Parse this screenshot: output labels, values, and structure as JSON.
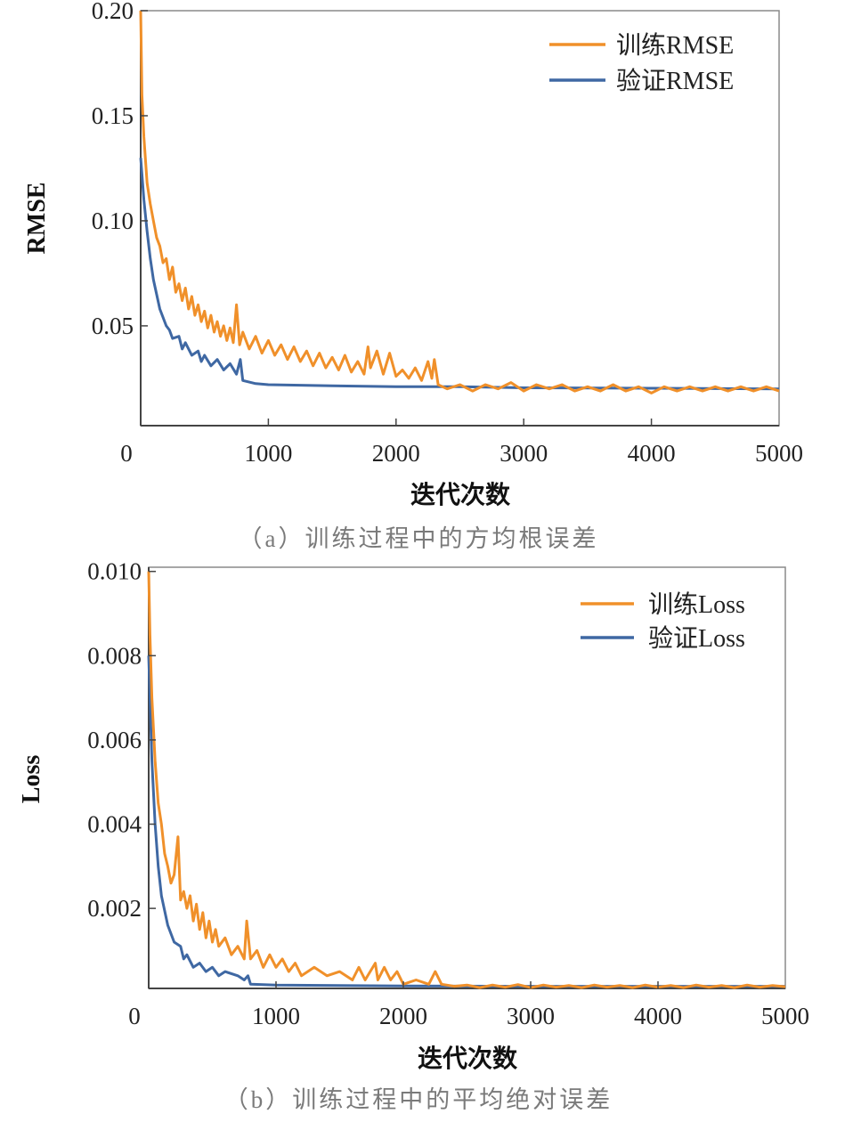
{
  "chart_data": [
    {
      "type": "line",
      "caption": "（a）训练过程中的方均根误差",
      "xlabel": "迭代次数",
      "ylabel": "RMSE",
      "xlim": [
        0,
        5000
      ],
      "ylim": [
        0.0025,
        0.2
      ],
      "xticks": [
        0,
        1000,
        2000,
        3000,
        4000,
        5000
      ],
      "xtick_labels": [
        "0",
        "1000",
        "2000",
        "3000",
        "4000",
        "5000"
      ],
      "yticks": [
        0.05,
        0.1,
        0.15,
        0.2
      ],
      "ytick_labels": [
        "0.05",
        "0.10",
        "0.15",
        "0.20"
      ],
      "grid": false,
      "legend_position": "top-right",
      "series": [
        {
          "name": "验证RMSE",
          "color": "#3F68A3",
          "x": [
            0,
            25,
            50,
            75,
            100,
            150,
            200,
            225,
            250,
            300,
            325,
            350,
            400,
            450,
            475,
            500,
            550,
            600,
            650,
            700,
            750,
            780,
            800,
            900,
            1000,
            1500,
            2000,
            2500,
            3000,
            4000,
            5000
          ],
          "y": [
            0.13,
            0.11,
            0.095,
            0.082,
            0.072,
            0.058,
            0.05,
            0.048,
            0.044,
            0.045,
            0.039,
            0.042,
            0.036,
            0.038,
            0.033,
            0.036,
            0.031,
            0.034,
            0.029,
            0.032,
            0.027,
            0.034,
            0.024,
            0.0225,
            0.022,
            0.0215,
            0.021,
            0.021,
            0.0205,
            0.0203,
            0.02
          ]
        },
        {
          "name": "训练RMSE",
          "color": "#F0902A",
          "x": [
            0,
            10,
            25,
            50,
            75,
            100,
            125,
            150,
            175,
            200,
            225,
            250,
            275,
            300,
            325,
            350,
            375,
            400,
            425,
            450,
            475,
            500,
            525,
            550,
            575,
            600,
            625,
            650,
            675,
            700,
            725,
            750,
            775,
            800,
            850,
            900,
            950,
            1000,
            1050,
            1100,
            1150,
            1200,
            1250,
            1300,
            1350,
            1400,
            1450,
            1500,
            1550,
            1600,
            1650,
            1700,
            1750,
            1780,
            1800,
            1850,
            1900,
            1950,
            2000,
            2050,
            2100,
            2150,
            2200,
            2250,
            2280,
            2300,
            2330,
            2400,
            2500,
            2600,
            2700,
            2800,
            2900,
            3000,
            3100,
            3200,
            3300,
            3400,
            3500,
            3600,
            3700,
            3800,
            3900,
            4000,
            4100,
            4200,
            4300,
            4400,
            4500,
            4600,
            4700,
            4800,
            4900,
            5000
          ],
          "y": [
            0.2,
            0.16,
            0.14,
            0.118,
            0.108,
            0.1,
            0.092,
            0.088,
            0.08,
            0.082,
            0.072,
            0.078,
            0.066,
            0.07,
            0.062,
            0.068,
            0.058,
            0.064,
            0.055,
            0.06,
            0.052,
            0.057,
            0.049,
            0.055,
            0.047,
            0.052,
            0.045,
            0.05,
            0.043,
            0.049,
            0.042,
            0.06,
            0.041,
            0.047,
            0.039,
            0.045,
            0.037,
            0.043,
            0.036,
            0.041,
            0.034,
            0.04,
            0.033,
            0.038,
            0.031,
            0.037,
            0.03,
            0.035,
            0.029,
            0.036,
            0.028,
            0.033,
            0.027,
            0.04,
            0.03,
            0.038,
            0.027,
            0.037,
            0.026,
            0.029,
            0.025,
            0.03,
            0.024,
            0.033,
            0.025,
            0.034,
            0.022,
            0.02,
            0.022,
            0.019,
            0.022,
            0.02,
            0.023,
            0.019,
            0.022,
            0.02,
            0.022,
            0.019,
            0.021,
            0.019,
            0.022,
            0.019,
            0.021,
            0.018,
            0.021,
            0.019,
            0.021,
            0.019,
            0.021,
            0.019,
            0.021,
            0.019,
            0.021,
            0.019
          ]
        }
      ],
      "legend": [
        "训练RMSE",
        "验证RMSE"
      ]
    },
    {
      "type": "line",
      "caption": "（b）训练过程中的平均绝对误差",
      "xlabel": "迭代次数",
      "ylabel": "Loss",
      "xlim": [
        0,
        5000
      ],
      "ylim": [
        0.0001,
        0.0101
      ],
      "xticks": [
        0,
        1000,
        2000,
        3000,
        4000,
        5000
      ],
      "xtick_labels": [
        "0",
        "1000",
        "2000",
        "3000",
        "4000",
        "5000"
      ],
      "yticks": [
        0.002,
        0.004,
        0.006,
        0.008,
        0.01
      ],
      "ytick_labels": [
        "0.002",
        "0.004",
        "0.006",
        "0.008",
        "0.010"
      ],
      "grid": false,
      "legend_position": "top-right",
      "series": [
        {
          "name": "验证Loss",
          "color": "#3F68A3",
          "x": [
            0,
            25,
            50,
            75,
            100,
            150,
            200,
            250,
            275,
            300,
            350,
            400,
            450,
            500,
            550,
            600,
            700,
            750,
            780,
            800,
            1000,
            2000,
            3000,
            4000,
            5000
          ],
          "y": [
            0.008,
            0.0055,
            0.004,
            0.003,
            0.0023,
            0.0016,
            0.0012,
            0.0011,
            0.0008,
            0.0009,
            0.0006,
            0.0007,
            0.0005,
            0.0006,
            0.0004,
            0.0005,
            0.0004,
            0.0003,
            0.0004,
            0.0002,
            0.00018,
            0.00016,
            0.00015,
            0.00015,
            0.00015
          ]
        },
        {
          "name": "训练Loss",
          "color": "#F0902A",
          "x": [
            0,
            10,
            25,
            50,
            75,
            100,
            125,
            150,
            175,
            200,
            230,
            250,
            275,
            300,
            325,
            350,
            375,
            400,
            425,
            450,
            475,
            500,
            525,
            550,
            600,
            650,
            700,
            750,
            770,
            800,
            850,
            900,
            950,
            1000,
            1050,
            1100,
            1150,
            1200,
            1300,
            1400,
            1500,
            1600,
            1650,
            1700,
            1780,
            1800,
            1850,
            1900,
            1950,
            2000,
            2100,
            2200,
            2250,
            2300,
            2400,
            2500,
            2600,
            2700,
            2800,
            2900,
            3000,
            3100,
            3200,
            3300,
            3400,
            3500,
            3600,
            3700,
            3800,
            3900,
            4000,
            4100,
            4200,
            4300,
            4400,
            4500,
            4600,
            4700,
            4800,
            4900,
            5000
          ],
          "y": [
            0.01,
            0.0085,
            0.007,
            0.0055,
            0.0045,
            0.004,
            0.0033,
            0.003,
            0.0026,
            0.0028,
            0.0037,
            0.0022,
            0.0024,
            0.002,
            0.0023,
            0.0017,
            0.0021,
            0.0015,
            0.0019,
            0.0013,
            0.0017,
            0.0012,
            0.0015,
            0.0011,
            0.0013,
            0.0009,
            0.0011,
            0.0008,
            0.0017,
            0.0008,
            0.001,
            0.0006,
            0.0009,
            0.0006,
            0.0008,
            0.0005,
            0.0007,
            0.0004,
            0.0006,
            0.0004,
            0.0005,
            0.0003,
            0.0006,
            0.0003,
            0.0007,
            0.0003,
            0.0006,
            0.0003,
            0.0005,
            0.0002,
            0.0003,
            0.0002,
            0.0005,
            0.0002,
            0.00015,
            0.00018,
            0.00012,
            0.00018,
            0.00013,
            0.00019,
            0.00012,
            0.00018,
            0.00013,
            0.00017,
            0.00012,
            0.00018,
            0.00013,
            0.00017,
            0.00012,
            0.00018,
            0.00013,
            0.00017,
            0.00012,
            0.00018,
            0.00013,
            0.00017,
            0.00012,
            0.00018,
            0.00013,
            0.00017,
            0.00014
          ]
        }
      ],
      "legend": [
        "训练Loss",
        "验证Loss"
      ]
    }
  ]
}
